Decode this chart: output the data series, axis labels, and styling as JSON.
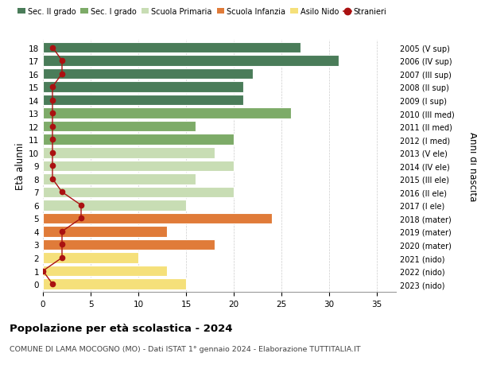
{
  "ages": [
    18,
    17,
    16,
    15,
    14,
    13,
    12,
    11,
    10,
    9,
    8,
    7,
    6,
    5,
    4,
    3,
    2,
    1,
    0
  ],
  "years": [
    "2005 (V sup)",
    "2006 (IV sup)",
    "2007 (III sup)",
    "2008 (II sup)",
    "2009 (I sup)",
    "2010 (III med)",
    "2011 (II med)",
    "2012 (I med)",
    "2013 (V ele)",
    "2014 (IV ele)",
    "2015 (III ele)",
    "2016 (II ele)",
    "2017 (I ele)",
    "2018 (mater)",
    "2019 (mater)",
    "2020 (mater)",
    "2021 (nido)",
    "2022 (nido)",
    "2023 (nido)"
  ],
  "bar_values": [
    27,
    31,
    22,
    21,
    21,
    26,
    16,
    20,
    18,
    20,
    16,
    20,
    15,
    24,
    13,
    18,
    10,
    13,
    15
  ],
  "bar_colors": [
    "#4a7c59",
    "#4a7c59",
    "#4a7c59",
    "#4a7c59",
    "#4a7c59",
    "#7dab68",
    "#7dab68",
    "#7dab68",
    "#c8ddb4",
    "#c8ddb4",
    "#c8ddb4",
    "#c8ddb4",
    "#c8ddb4",
    "#e07b39",
    "#e07b39",
    "#e07b39",
    "#f5e07a",
    "#f5e07a",
    "#f5e07a"
  ],
  "stranieri_values": [
    1,
    2,
    2,
    1,
    1,
    1,
    1,
    1,
    1,
    1,
    1,
    2,
    4,
    4,
    2,
    2,
    2,
    0,
    1
  ],
  "stranieri_color": "#aa1111",
  "xlabel": "",
  "ylabel": "Età alunni",
  "ylabel_right": "Anni di nascita",
  "xlim": [
    0,
    37
  ],
  "xticks": [
    0,
    5,
    10,
    15,
    20,
    25,
    30,
    35
  ],
  "title": "Popolazione per età scolastica - 2024",
  "subtitle": "COMUNE DI LAMA MOCOGNO (MO) - Dati ISTAT 1° gennaio 2024 - Elaborazione TUTTITALIA.IT",
  "legend_labels": [
    "Sec. II grado",
    "Sec. I grado",
    "Scuola Primaria",
    "Scuola Infanzia",
    "Asilo Nido",
    "Stranieri"
  ],
  "legend_colors": [
    "#4a7c59",
    "#7dab68",
    "#c8ddb4",
    "#e07b39",
    "#f5e07a",
    "#aa1111"
  ],
  "background_color": "#ffffff",
  "bar_height": 0.82,
  "grid_color": "#cccccc"
}
